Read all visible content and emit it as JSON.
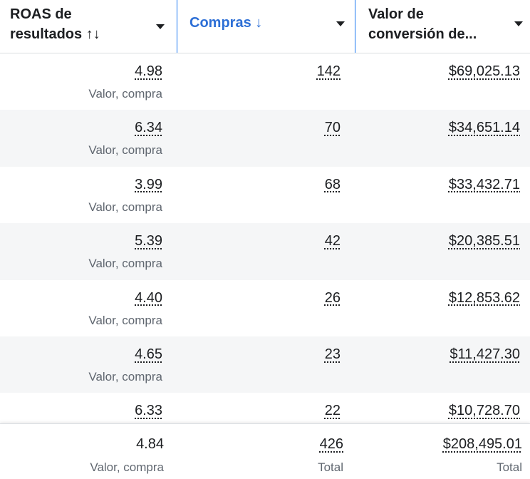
{
  "header": {
    "columns": [
      {
        "lines": [
          "ROAS de",
          "resultados ↑↓"
        ]
      },
      {
        "lines": [
          "Compras ↓"
        ]
      },
      {
        "lines": [
          "Valor de",
          "conversión de..."
        ]
      }
    ]
  },
  "table": {
    "rows": [
      {
        "roas": "4.98",
        "roas_note": "Valor, compra",
        "purchases": "142",
        "value": "$69,025.13"
      },
      {
        "roas": "6.34",
        "roas_note": "Valor, compra",
        "purchases": "70",
        "value": "$34,651.14"
      },
      {
        "roas": "3.99",
        "roas_note": "Valor, compra",
        "purchases": "68",
        "value": "$33,432.71"
      },
      {
        "roas": "5.39",
        "roas_note": "Valor, compra",
        "purchases": "42",
        "value": "$20,385.51"
      },
      {
        "roas": "4.40",
        "roas_note": "Valor, compra",
        "purchases": "26",
        "value": "$12,853.62"
      },
      {
        "roas": "4.65",
        "roas_note": "Valor, compra",
        "purchases": "23",
        "value": "$11,427.30"
      },
      {
        "roas": "6.33",
        "purchases": "22",
        "value": "$10,728.70"
      }
    ]
  },
  "footer": {
    "roas": "4.84",
    "roas_note": "Valor, compra",
    "purchases": "426",
    "purchases_note": "Total",
    "value": "$208,495.01",
    "value_note": "Total"
  }
}
